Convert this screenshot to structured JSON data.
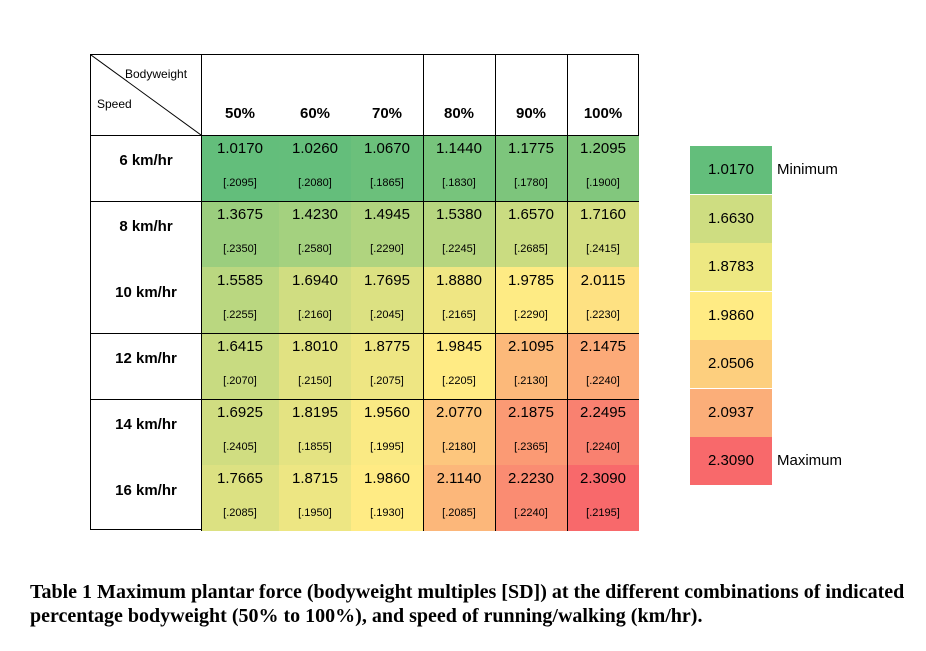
{
  "chart_data": {
    "type": "heatmap",
    "corner_labels": {
      "top": "Bodyweight",
      "bottom": "Speed"
    },
    "columns": [
      "50%",
      "60%",
      "70%",
      "80%",
      "90%",
      "100%"
    ],
    "rows": [
      {
        "label": "6 km/hr",
        "values": [
          "1.0170",
          "1.0260",
          "1.0670",
          "1.1440",
          "1.1775",
          "1.2095"
        ],
        "sd": [
          "[.2095]",
          "[.2080]",
          "[.1865]",
          "[.1830]",
          "[.1780]",
          "[.1900]"
        ]
      },
      {
        "label": "8 km/hr",
        "values": [
          "1.3675",
          "1.4230",
          "1.4945",
          "1.5380",
          "1.6570",
          "1.7160"
        ],
        "sd": [
          "[.2350]",
          "[.2580]",
          "[.2290]",
          "[.2245]",
          "[.2685]",
          "[.2415]"
        ]
      },
      {
        "label": "10 km/hr",
        "values": [
          "1.5585",
          "1.6940",
          "1.7695",
          "1.8880",
          "1.9785",
          "2.0115"
        ],
        "sd": [
          "[.2255]",
          "[.2160]",
          "[.2045]",
          "[.2165]",
          "[.2290]",
          "[.2230]"
        ]
      },
      {
        "label": "12 km/hr",
        "values": [
          "1.6415",
          "1.8010",
          "1.8775",
          "1.9845",
          "2.1095",
          "2.1475"
        ],
        "sd": [
          "[.2070]",
          "[.2150]",
          "[.2075]",
          "[.2205]",
          "[.2130]",
          "[.2240]"
        ]
      },
      {
        "label": "14 km/hr",
        "values": [
          "1.6925",
          "1.8195",
          "1.9560",
          "2.0770",
          "2.1875",
          "2.2495"
        ],
        "sd": [
          "[.2405]",
          "[.1855]",
          "[.1995]",
          "[.2180]",
          "[.2365]",
          "[.2240]"
        ]
      },
      {
        "label": "16 km/hr",
        "values": [
          "1.7665",
          "1.8715",
          "1.9860",
          "2.1140",
          "2.2230",
          "2.3090"
        ],
        "sd": [
          "[.2085]",
          "[.1950]",
          "[.1930]",
          "[.2085]",
          "[.2240]",
          "[.2195]"
        ]
      }
    ],
    "color_scale": {
      "min": 1.017,
      "mid": 1.986,
      "max": 2.309,
      "min_color": "#63be7b",
      "mid_color": "#ffeb84",
      "max_color": "#f8696b"
    },
    "legend": [
      {
        "value": "1.0170",
        "label": "Minimum",
        "color": "#63be7b"
      },
      {
        "value": "1.6630",
        "label": "",
        "color": "#cedd81"
      },
      {
        "value": "1.8783",
        "label": "",
        "color": "#ede882"
      },
      {
        "value": "1.9860",
        "label": "",
        "color": "#ffeb84"
      },
      {
        "value": "2.0506",
        "label": "",
        "color": "#fdcf7e"
      },
      {
        "value": "2.0937",
        "label": "",
        "color": "#fbae79"
      },
      {
        "value": "2.3090",
        "label": "Maximum",
        "color": "#f8696b"
      }
    ]
  },
  "caption": "Table 1 Maximum plantar force (bodyweight multiples [SD]) at the different combinations of indicated percentage bodyweight (50% to 100%), and speed of running/walking (km/hr)."
}
